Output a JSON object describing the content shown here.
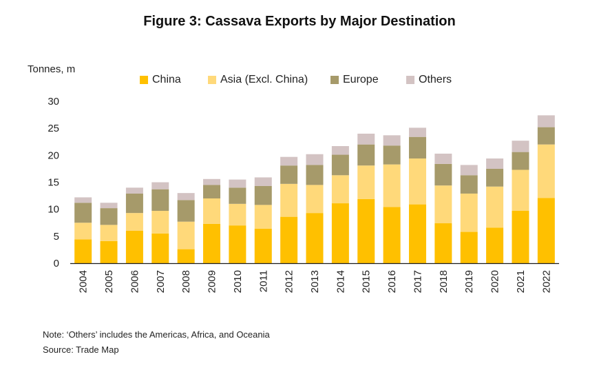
{
  "chart_data": {
    "type": "bar",
    "stacked": true,
    "title": "Figure 3: Cassava Exports by Major Destination",
    "ylabel": "Tonnes, m",
    "xlabel": "",
    "ylim": [
      0,
      30
    ],
    "yticks": [
      0,
      5,
      10,
      15,
      20,
      25,
      30
    ],
    "categories": [
      "2004",
      "2005",
      "2006",
      "2007",
      "2008",
      "2009",
      "2010",
      "2011",
      "2012",
      "2013",
      "2014",
      "2015",
      "2016",
      "2017",
      "2018",
      "2019",
      "2020",
      "2021",
      "2022"
    ],
    "series": [
      {
        "name": "China",
        "color": "#FFC000",
        "values": [
          4.4,
          4.1,
          6.0,
          5.5,
          2.6,
          7.3,
          7.0,
          6.4,
          8.6,
          9.3,
          11.1,
          11.9,
          10.4,
          10.9,
          7.4,
          5.8,
          6.6,
          9.7,
          12.1
        ]
      },
      {
        "name": "Asia (Excl. China)",
        "color": "#FFD97A",
        "values": [
          3.1,
          3.0,
          3.3,
          4.2,
          5.1,
          4.7,
          4.0,
          4.4,
          6.1,
          5.2,
          5.2,
          6.2,
          7.9,
          8.5,
          7.0,
          7.1,
          7.6,
          7.6,
          9.9
        ]
      },
      {
        "name": "Europe",
        "color": "#A69A6A",
        "values": [
          3.7,
          3.1,
          3.6,
          4.0,
          4.0,
          2.5,
          3.0,
          3.5,
          3.4,
          3.7,
          3.8,
          3.9,
          3.5,
          4.0,
          4.0,
          3.4,
          3.3,
          3.3,
          3.2
        ]
      },
      {
        "name": "Others",
        "color": "#D3C3C3",
        "values": [
          1.0,
          1.0,
          1.1,
          1.3,
          1.3,
          1.1,
          1.5,
          1.6,
          1.6,
          2.0,
          1.6,
          2.0,
          1.9,
          1.7,
          1.9,
          1.9,
          1.9,
          2.1,
          2.2
        ]
      }
    ],
    "legend_position": "top"
  },
  "notes": {
    "note": "Note: ‘Others’ includes the Americas, Africa, and Oceania",
    "source": "Source: Trade Map"
  }
}
